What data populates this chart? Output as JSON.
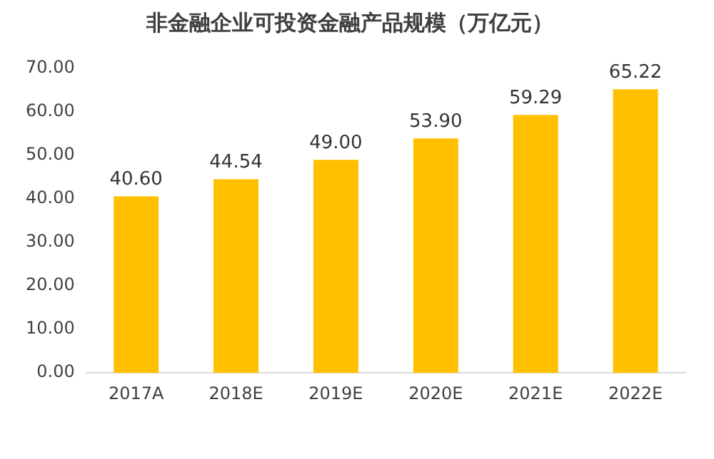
{
  "chart_data": {
    "type": "bar",
    "title": "非金融企业可投资金融产品规模（万亿元）",
    "categories": [
      "2017A",
      "2018E",
      "2019E",
      "2020E",
      "2021E",
      "2022E"
    ],
    "values": [
      40.6,
      44.54,
      49.0,
      53.9,
      59.29,
      65.22
    ],
    "value_labels": [
      "40.60",
      "44.54",
      "49.00",
      "53.90",
      "59.29",
      "65.22"
    ],
    "color": "#ffc000",
    "ylim": [
      0,
      70
    ],
    "yticks": [
      {
        "value": 0,
        "label": "0.00"
      },
      {
        "value": 10,
        "label": "10.00"
      },
      {
        "value": 20,
        "label": "20.00"
      },
      {
        "value": 30,
        "label": "30.00"
      },
      {
        "value": 40,
        "label": "40.00"
      },
      {
        "value": 50,
        "label": "50.00"
      },
      {
        "value": 60,
        "label": "60.00"
      },
      {
        "value": 70,
        "label": "70.00"
      }
    ],
    "grid": false,
    "legend": false
  }
}
